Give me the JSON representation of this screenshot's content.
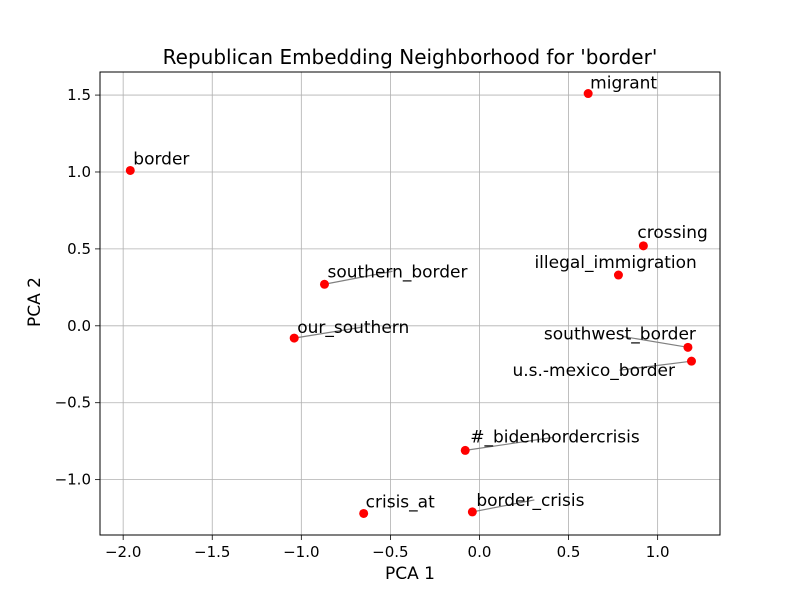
{
  "chart_data": {
    "type": "scatter",
    "title": "Republican Embedding Neighborhood for 'border'",
    "xlabel": "PCA 1",
    "ylabel": "PCA 2",
    "xlim": [
      -2.13,
      1.35
    ],
    "ylim": [
      -1.36,
      1.65
    ],
    "xticks": [
      -2.0,
      -1.5,
      -1.0,
      -0.5,
      0.0,
      0.5,
      1.0
    ],
    "xtick_labels": [
      "−2.0",
      "−1.5",
      "−1.0",
      "−0.5",
      "0.0",
      "0.5",
      "1.0"
    ],
    "yticks": [
      1.5,
      1.0,
      0.5,
      0.0,
      -0.5,
      -1.0
    ],
    "ytick_labels": [
      "1.5",
      "1.0",
      "0.5",
      "0.0",
      "−0.5",
      "−1.0"
    ],
    "grid": true,
    "marker_color": "#ff0000",
    "connector_color": "#808080",
    "points": [
      {
        "label": "migrant",
        "x": 0.61,
        "y": 1.51
      },
      {
        "label": "border",
        "x": -1.96,
        "y": 1.01
      },
      {
        "label": "crossing",
        "x": 0.92,
        "y": 0.52
      },
      {
        "label": "illegal_immigration",
        "x": 0.78,
        "y": 0.33
      },
      {
        "label": "southern_border",
        "x": -0.87,
        "y": 0.27
      },
      {
        "label": "our_southern",
        "x": -1.04,
        "y": -0.08
      },
      {
        "label": "southwest_border",
        "x": 1.17,
        "y": -0.14
      },
      {
        "label": "u.s.-mexico_border",
        "x": 1.19,
        "y": -0.23
      },
      {
        "label": "#_bidenbordercrisis",
        "x": -0.08,
        "y": -0.81
      },
      {
        "label": "crisis_at",
        "x": -0.65,
        "y": -1.22
      },
      {
        "label": "border_crisis",
        "x": -0.04,
        "y": -1.21
      }
    ]
  }
}
